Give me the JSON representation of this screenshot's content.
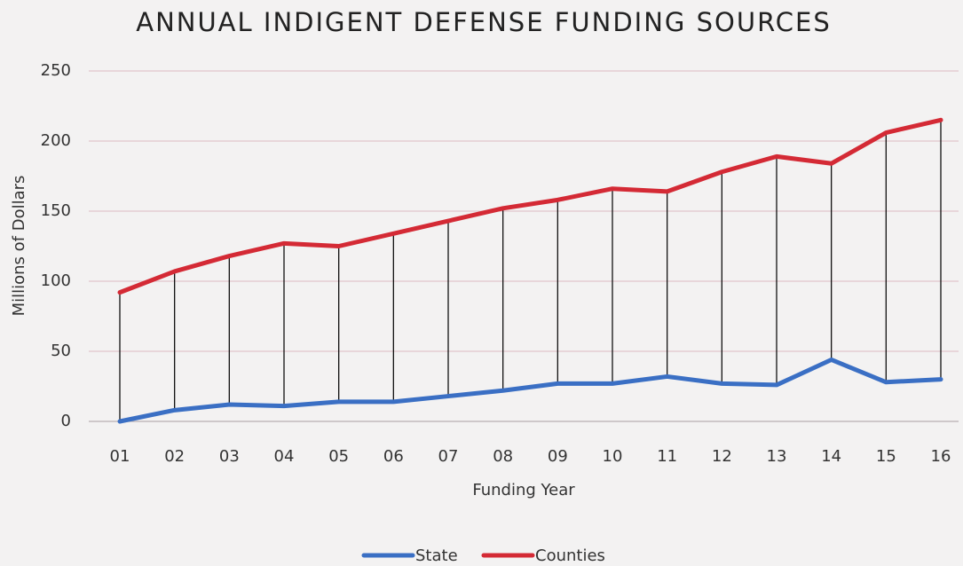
{
  "chart_data": {
    "type": "line",
    "title": "ANNUAL INDIGENT DEFENSE FUNDING SOURCES",
    "x_label": "Funding Year",
    "y_label": "Millions of Dollars",
    "categories": [
      "01",
      "02",
      "03",
      "04",
      "05",
      "06",
      "07",
      "08",
      "09",
      "10",
      "11",
      "12",
      "13",
      "14",
      "15",
      "16"
    ],
    "series": [
      {
        "name": "State",
        "color": "#3a6fc4",
        "values": [
          0,
          8,
          12,
          11,
          14,
          14,
          18,
          22,
          27,
          27,
          32,
          27,
          26,
          44,
          28,
          30
        ]
      },
      {
        "name": "Counties",
        "color": "#d42a35",
        "values": [
          92,
          107,
          118,
          127,
          125,
          134,
          143,
          152,
          158,
          166,
          164,
          178,
          189,
          184,
          206,
          215
        ]
      }
    ],
    "ylim": [
      0,
      250
    ],
    "yticks": [
      0,
      50,
      100,
      150,
      200,
      250
    ],
    "grid": true,
    "drop_lines": true,
    "legend": "bottom"
  }
}
